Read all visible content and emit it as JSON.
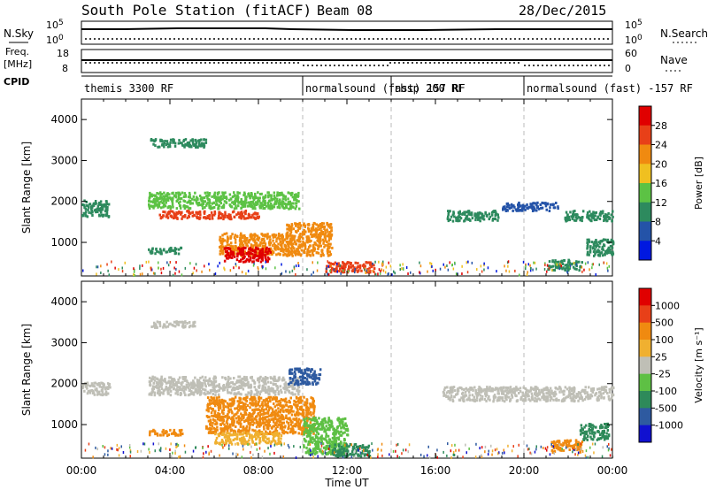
{
  "header": {
    "station": "South Pole Station (fitACF)",
    "beam": "Beam 08",
    "date": "28/Dec/2015"
  },
  "strip_panels": {
    "nsky": {
      "label": "N.Sky",
      "ticks": [
        "10^5",
        "10^0"
      ]
    },
    "nsearch": {
      "label": "N.Search",
      "ticks": [
        "10^5",
        "10^0"
      ]
    },
    "freq": {
      "label_line1": "Freq.",
      "label_line2": "[MHz]",
      "ticks": [
        "18",
        "8"
      ]
    },
    "nave": {
      "label": "Nave",
      "ticks": [
        "60",
        "0"
      ]
    },
    "cpid": {
      "label": "CPID",
      "segments": [
        {
          "name": "themis 3300 RF",
          "start_hour": 0
        },
        {
          "name": "normalsound (fast) 157 RF",
          "start_hour": 10
        },
        {
          "name": "rbsp 200 RF",
          "start_hour": 14
        },
        {
          "name": "normalsound (fast) -157 RF",
          "start_hour": 20
        }
      ]
    }
  },
  "chart_data": [
    {
      "type": "heatmap",
      "panel": "power",
      "ylabel": "Slant Range [km]",
      "colorbar_label": "Power [dB]",
      "colorbar_ticks": [
        "4",
        "8",
        "12",
        "16",
        "20",
        "24",
        "28"
      ],
      "colorbar_colors": [
        "#0018e0",
        "#2453a8",
        "#2d8a5e",
        "#5cc244",
        "#f0c020",
        "#f08a10",
        "#e84018",
        "#e00000"
      ],
      "ylim": [
        180,
        4500
      ],
      "yticks": [
        1000,
        2000,
        3000,
        4000
      ],
      "xlim_hours": [
        0,
        24
      ],
      "echo_regions": [
        {
          "t0": 0.0,
          "t1": 1.2,
          "r0": 1650,
          "r1": 2050,
          "color": "#2d8a5e"
        },
        {
          "t0": 3.1,
          "t1": 5.6,
          "r0": 3350,
          "r1": 3550,
          "color": "#2d8a5e"
        },
        {
          "t0": 3.0,
          "t1": 9.8,
          "r0": 1850,
          "r1": 2250,
          "color": "#5cc244"
        },
        {
          "t0": 3.5,
          "t1": 8.0,
          "r0": 1600,
          "r1": 1800,
          "color": "#e84018"
        },
        {
          "t0": 6.2,
          "t1": 9.5,
          "r0": 700,
          "r1": 1250,
          "color": "#f08a10"
        },
        {
          "t0": 6.4,
          "t1": 8.5,
          "r0": 550,
          "r1": 900,
          "color": "#e00000"
        },
        {
          "t0": 9.2,
          "t1": 11.3,
          "r0": 700,
          "r1": 1500,
          "color": "#f08a10"
        },
        {
          "t0": 11.0,
          "t1": 13.2,
          "r0": 300,
          "r1": 550,
          "color": "#e84018"
        },
        {
          "t0": 3.0,
          "t1": 4.5,
          "r0": 750,
          "r1": 900,
          "color": "#2d8a5e"
        },
        {
          "t0": 16.5,
          "t1": 18.8,
          "r0": 1550,
          "r1": 1800,
          "color": "#2d8a5e"
        },
        {
          "t0": 19.0,
          "t1": 21.5,
          "r0": 1800,
          "r1": 2000,
          "color": "#2453a8"
        },
        {
          "t0": 21.8,
          "t1": 24.0,
          "r0": 1550,
          "r1": 1800,
          "color": "#2d8a5e"
        },
        {
          "t0": 21.0,
          "t1": 22.6,
          "r0": 350,
          "r1": 600,
          "color": "#2d8a5e"
        },
        {
          "t0": 22.8,
          "t1": 24.0,
          "r0": 700,
          "r1": 1100,
          "color": "#2d8a5e"
        }
      ]
    },
    {
      "type": "heatmap",
      "panel": "velocity",
      "ylabel": "Slant Range [km]",
      "colorbar_label": "Velocity [m s⁻¹]",
      "colorbar_ticks": [
        "1000",
        "500",
        "100",
        "25",
        "-25",
        "-100",
        "-500",
        "-1000"
      ],
      "colorbar_colors": [
        "#1010d0",
        "#2e5aa0",
        "#2e8a5a",
        "#5ec044",
        "#bfbfb6",
        "#f0b030",
        "#f08a10",
        "#e84018",
        "#e00000"
      ],
      "ylim": [
        180,
        4500
      ],
      "yticks": [
        1000,
        2000,
        3000,
        4000
      ],
      "xlim_hours": [
        0,
        24
      ],
      "xticks": [
        "00:00",
        "04:00",
        "08:00",
        "12:00",
        "16:00",
        "20:00",
        "00:00"
      ],
      "xlabel": "Time UT",
      "echo_regions": [
        {
          "t0": 0.0,
          "t1": 1.3,
          "r0": 1750,
          "r1": 2050,
          "color": "#bfbfb6"
        },
        {
          "t0": 3.1,
          "t1": 5.2,
          "r0": 3400,
          "r1": 3550,
          "color": "#bfbfb6"
        },
        {
          "t0": 3.0,
          "t1": 9.8,
          "r0": 1750,
          "r1": 2200,
          "color": "#bfbfb6"
        },
        {
          "t0": 3.0,
          "t1": 4.6,
          "r0": 750,
          "r1": 900,
          "color": "#f08a10"
        },
        {
          "t0": 5.6,
          "t1": 10.5,
          "r0": 800,
          "r1": 1700,
          "color": "#f08a10"
        },
        {
          "t0": 6.0,
          "t1": 9.0,
          "r0": 550,
          "r1": 850,
          "color": "#f0b030"
        },
        {
          "t0": 10.0,
          "t1": 12.0,
          "r0": 300,
          "r1": 1200,
          "color": "#5ec044"
        },
        {
          "t0": 11.3,
          "t1": 13.0,
          "r0": 250,
          "r1": 550,
          "color": "#2e8a5a"
        },
        {
          "t0": 9.3,
          "t1": 10.8,
          "r0": 2000,
          "r1": 2400,
          "color": "#2e5aa0"
        },
        {
          "t0": 16.3,
          "t1": 24.0,
          "r0": 1600,
          "r1": 1950,
          "color": "#bfbfb6"
        },
        {
          "t0": 21.2,
          "t1": 22.6,
          "r0": 350,
          "r1": 650,
          "color": "#f08a10"
        },
        {
          "t0": 22.5,
          "t1": 23.8,
          "r0": 650,
          "r1": 1050,
          "color": "#2e8a5a"
        }
      ]
    }
  ]
}
